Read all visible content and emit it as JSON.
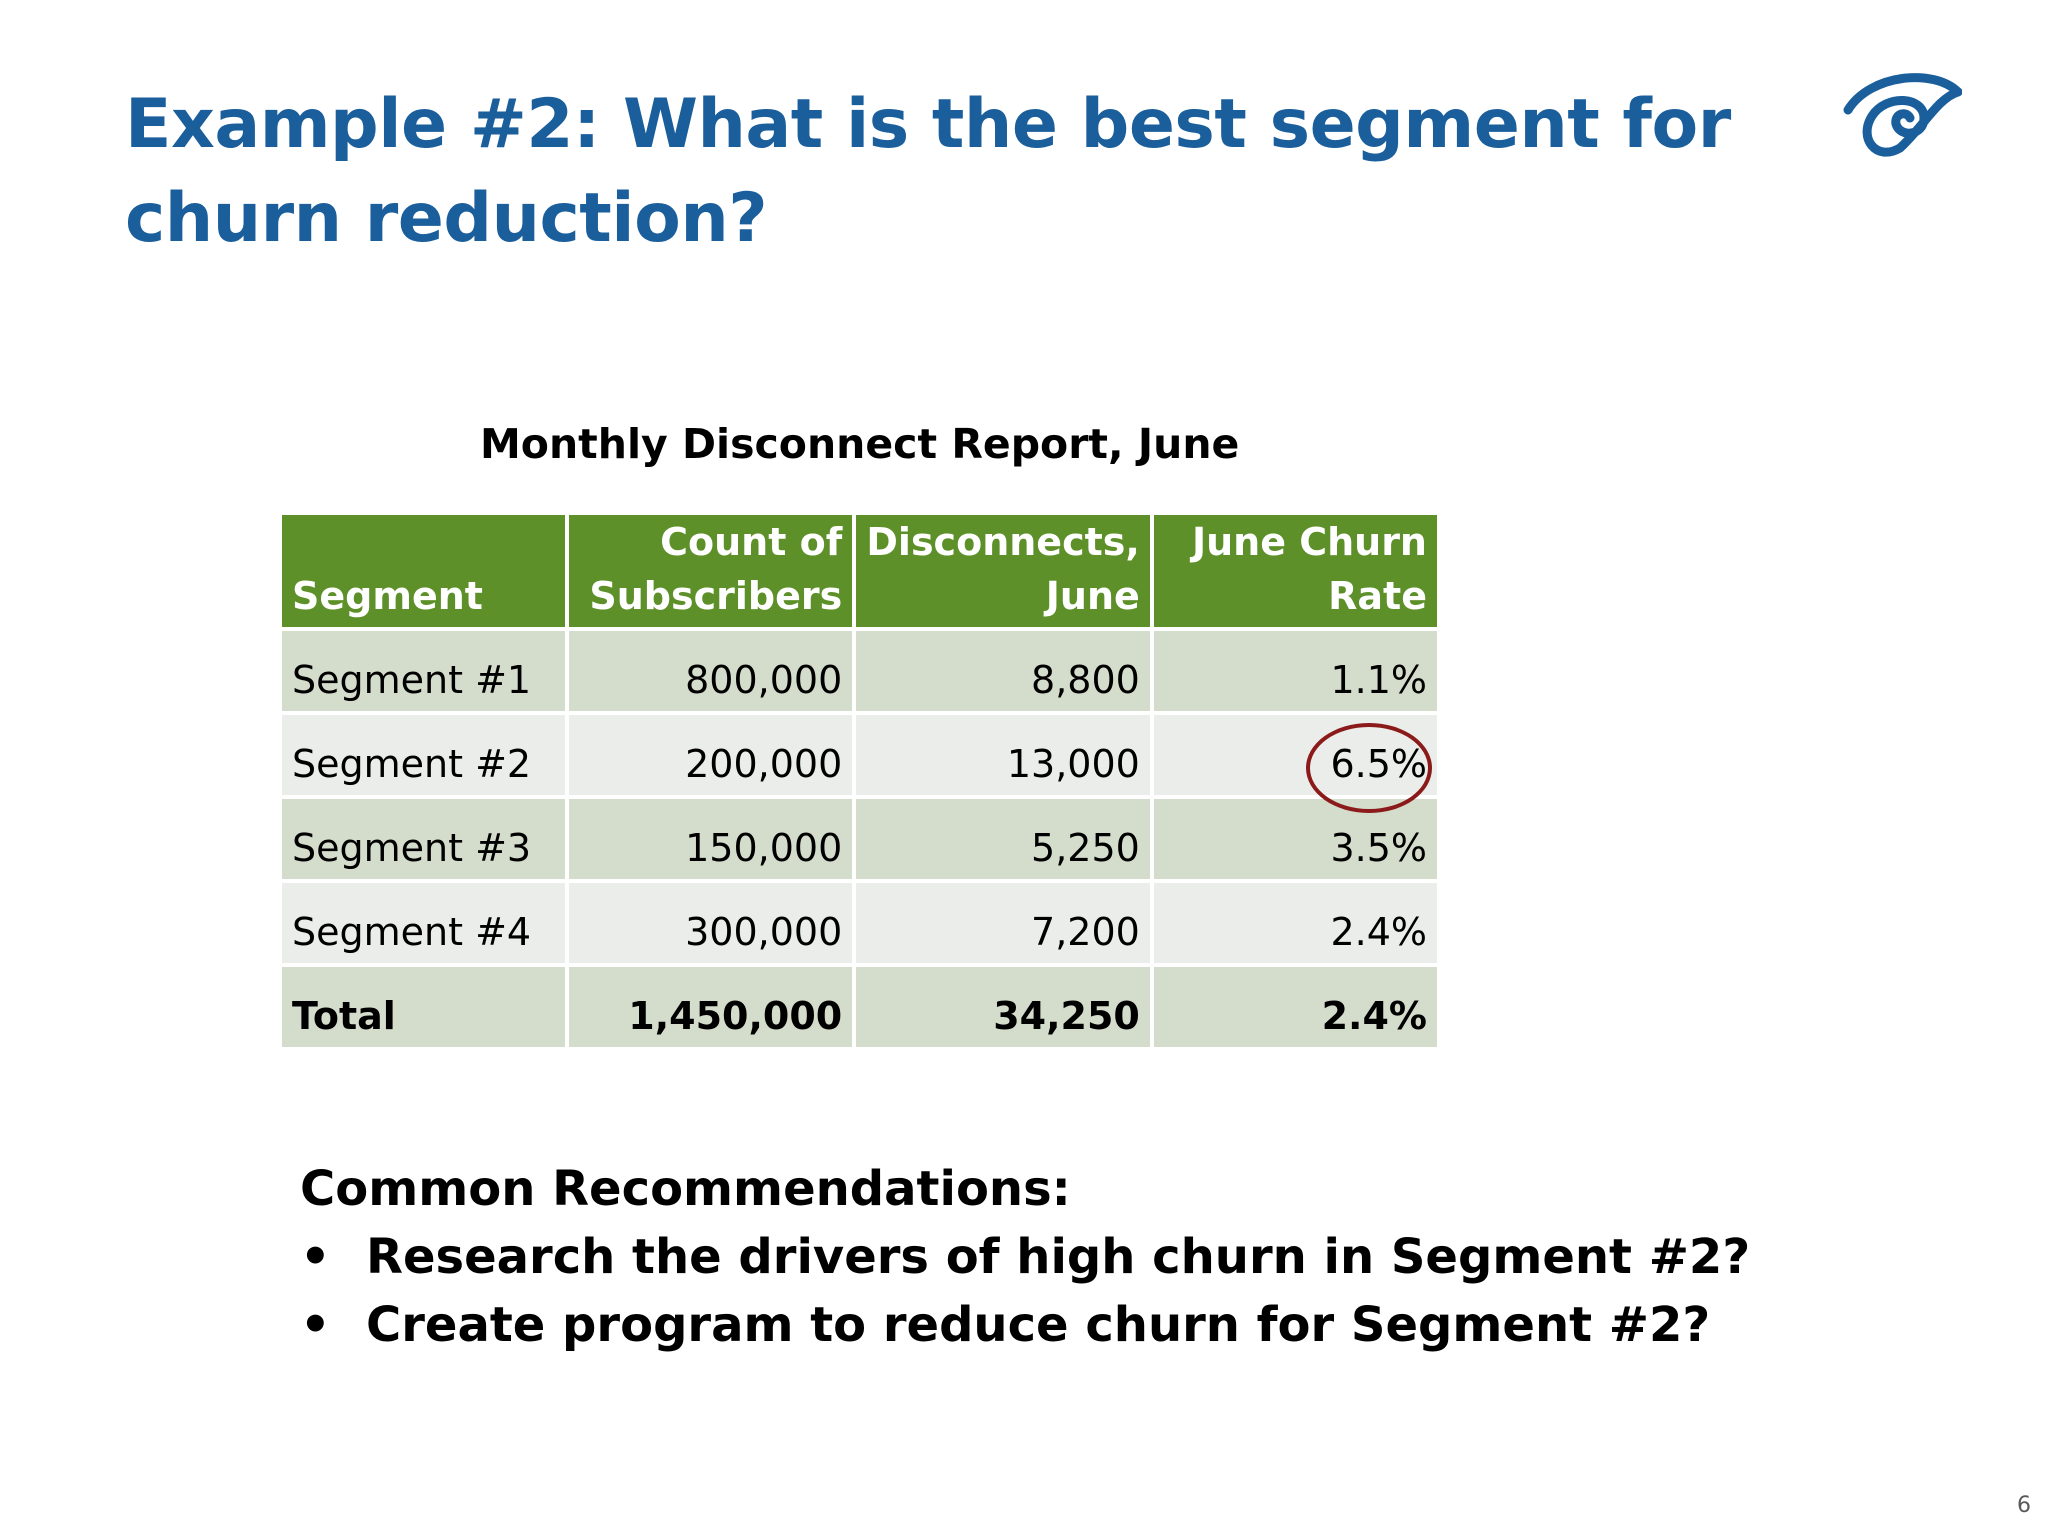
{
  "slide": {
    "title": "Example #2: What is the best segment for churn reduction?",
    "page_number": "6"
  },
  "table": {
    "caption": "Monthly Disconnect Report, June",
    "headers": [
      {
        "line1": "",
        "line2": "Segment"
      },
      {
        "line1": "Count of",
        "line2": "Subscribers"
      },
      {
        "line1": "Disconnects,",
        "line2": "June"
      },
      {
        "line1": "June Churn",
        "line2": "Rate"
      }
    ],
    "rows": [
      {
        "segment": "Segment #1",
        "subscribers": "800,000",
        "disconnects": "8,800",
        "churn_rate": "1.1%"
      },
      {
        "segment": "Segment #2",
        "subscribers": "200,000",
        "disconnects": "13,000",
        "churn_rate": "6.5%"
      },
      {
        "segment": "Segment #3",
        "subscribers": "150,000",
        "disconnects": "5,250",
        "churn_rate": "3.5%"
      },
      {
        "segment": "Segment #4",
        "subscribers": "300,000",
        "disconnects": "7,200",
        "churn_rate": "2.4%"
      }
    ],
    "total": {
      "segment": "Total",
      "subscribers": "1,450,000",
      "disconnects": "34,250",
      "churn_rate": "2.4%"
    }
  },
  "recommendations": {
    "heading": "Common Recommendations:",
    "bullet": "•",
    "items": [
      "Research the drivers of high churn in Segment #2?",
      "Create program to reduce churn for Segment #2?"
    ]
  },
  "colors": {
    "title": "#1a5e9c",
    "header_bg": "#5e9029",
    "row_odd_bg": "#d4dccb",
    "row_even_bg": "#ebedea",
    "highlight_circle": "#8b1a1a"
  },
  "icons": {
    "logo": "eye-spiral-logo-icon"
  }
}
